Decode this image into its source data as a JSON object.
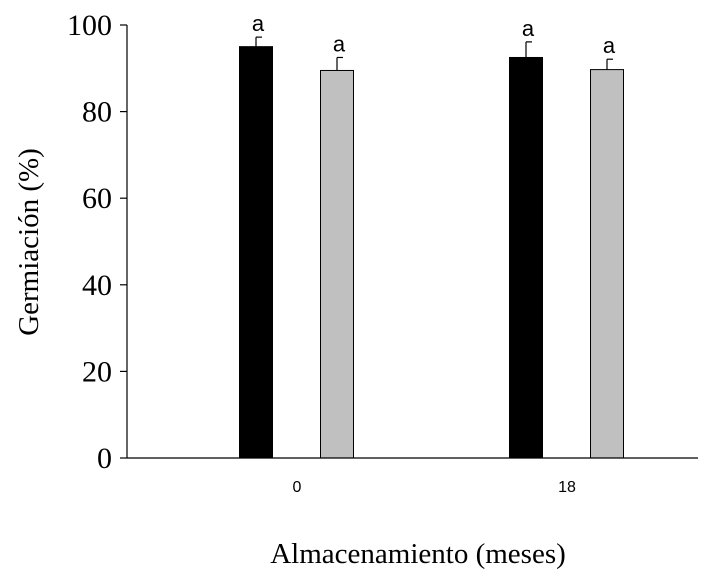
{
  "chart_data": {
    "type": "bar",
    "title": "",
    "xlabel": "Almacenamiento (meses)",
    "ylabel": "Germiación (%)",
    "categories": [
      "0",
      "18"
    ],
    "ylim": [
      0,
      100
    ],
    "yticks": [
      "0",
      "20",
      "40",
      "60",
      "80",
      "100"
    ],
    "grid": false,
    "legend": "none",
    "series": [
      {
        "color": "#000000",
        "values": [
          95,
          92.5
        ],
        "errors": [
          2.2,
          3.6
        ],
        "labels": [
          "a",
          "a"
        ]
      },
      {
        "color": "#c0c0c0",
        "values": [
          89.5,
          89.7
        ],
        "errors": [
          3.0,
          2.4
        ],
        "labels": [
          "a",
          "a"
        ]
      }
    ]
  }
}
